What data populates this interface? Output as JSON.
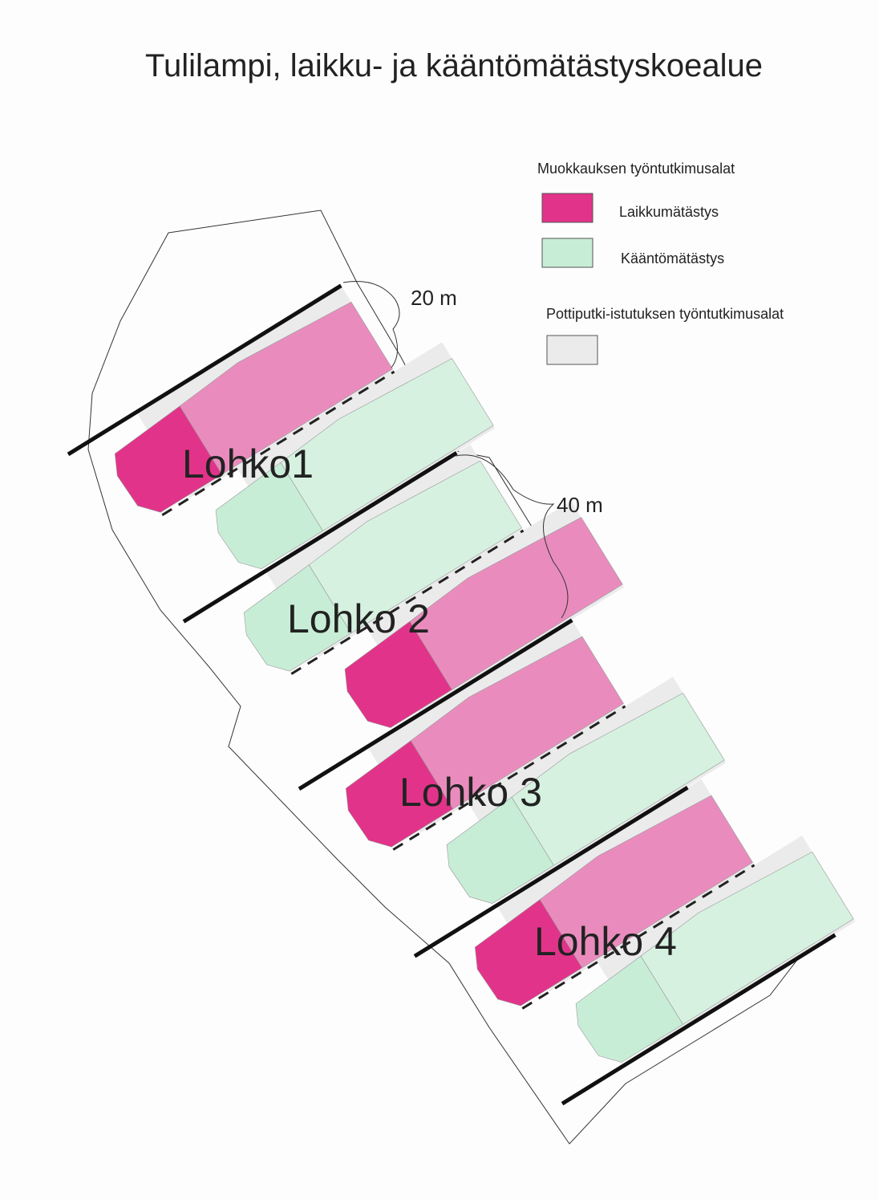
{
  "title": "Tulilampi, laikku- ja kääntömätästyskoealue",
  "legend": {
    "heading": "Muokkauksen työntutkimusalat",
    "items": [
      {
        "label": "Laikkumätästys",
        "color": "#e2338a"
      },
      {
        "label": "Kääntömätästys",
        "color": "#c8edd6"
      }
    ],
    "heading2": "Pottiputki-istutuksen työntutkimusalat",
    "item2_color": "#ebebeb"
  },
  "map": {
    "distances": [
      "20 m",
      "40 m"
    ],
    "blocks": [
      "Lohko1",
      "Lohko 2",
      "Lohko 3",
      "Lohko 4"
    ]
  }
}
